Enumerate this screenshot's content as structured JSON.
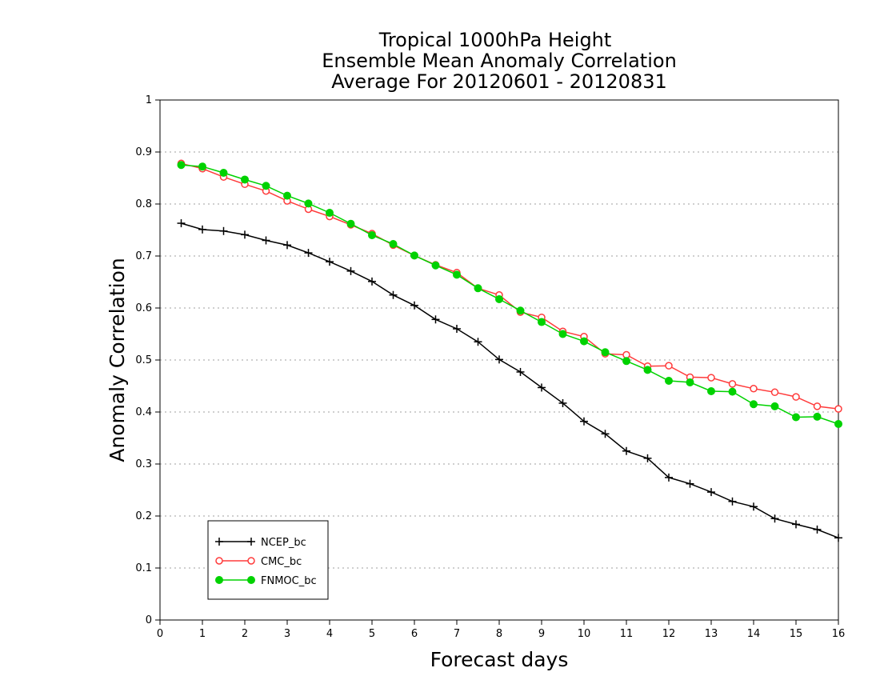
{
  "chart_data": {
    "type": "line",
    "title": [
      "Tropical 1000hPa Height",
      "Ensemble Mean Anomaly Correlation",
      "Average For 20120601 - 20120831"
    ],
    "xlabel": "Forecast days",
    "ylabel": "Anomaly Correlation",
    "xlim": [
      0,
      16
    ],
    "ylim": [
      0,
      1
    ],
    "xticks": [
      0,
      1,
      2,
      3,
      4,
      5,
      6,
      7,
      8,
      9,
      10,
      11,
      12,
      13,
      14,
      15,
      16
    ],
    "xtick_labels": [
      "0",
      "1",
      "2",
      "3",
      "4",
      "5",
      "6",
      "7",
      "8",
      "9",
      "10",
      "11",
      "12",
      "13",
      "14",
      "15",
      "16"
    ],
    "yticks": [
      0,
      0.1,
      0.2,
      0.3,
      0.4,
      0.5,
      0.6,
      0.7,
      0.8,
      0.9,
      1
    ],
    "ytick_labels": [
      "0",
      "0.1",
      "0.2",
      "0.3",
      "0.4",
      "0.5",
      "0.6",
      "0.7",
      "0.8",
      "0.9",
      "1"
    ],
    "grid": "horizontal dotted",
    "legend_position": "bottom-left",
    "x": [
      0.5,
      1,
      1.5,
      2,
      2.5,
      3,
      3.5,
      4,
      4.5,
      5,
      5.5,
      6,
      6.5,
      7,
      7.5,
      8,
      8.5,
      9,
      9.5,
      10,
      10.5,
      11,
      11.5,
      12,
      12.5,
      13,
      13.5,
      14,
      14.5,
      15,
      15.5,
      16
    ],
    "series": [
      {
        "name": "NCEP_bc",
        "color": "#000000",
        "marker": "plus",
        "values": [
          0.763,
          0.751,
          0.748,
          0.741,
          0.73,
          0.721,
          0.706,
          0.689,
          0.671,
          0.651,
          0.625,
          0.605,
          0.578,
          0.56,
          0.535,
          0.501,
          0.477,
          0.447,
          0.417,
          0.382,
          0.358,
          0.325,
          0.311,
          0.274,
          0.262,
          0.246,
          0.228,
          0.218,
          0.195,
          0.184,
          0.174,
          0.158
        ]
      },
      {
        "name": "CMC_bc",
        "color": "#ff3b3b",
        "marker": "open-circle",
        "values": [
          0.878,
          0.868,
          0.852,
          0.838,
          0.825,
          0.806,
          0.79,
          0.776,
          0.76,
          0.743,
          0.721,
          0.701,
          0.683,
          0.668,
          0.638,
          0.625,
          0.592,
          0.582,
          0.555,
          0.545,
          0.512,
          0.51,
          0.488,
          0.489,
          0.467,
          0.466,
          0.454,
          0.445,
          0.438,
          0.429,
          0.411,
          0.406
        ]
      },
      {
        "name": "FNMOC_bc",
        "color": "#00d200",
        "marker": "filled-circle",
        "values": [
          0.875,
          0.872,
          0.86,
          0.847,
          0.835,
          0.816,
          0.801,
          0.783,
          0.762,
          0.74,
          0.723,
          0.701,
          0.682,
          0.664,
          0.638,
          0.617,
          0.595,
          0.573,
          0.55,
          0.536,
          0.515,
          0.498,
          0.481,
          0.46,
          0.457,
          0.44,
          0.439,
          0.415,
          0.411,
          0.39,
          0.391,
          0.377
        ]
      }
    ]
  }
}
